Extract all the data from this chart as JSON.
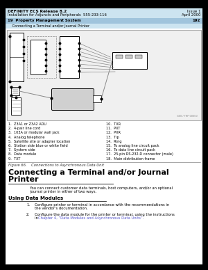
{
  "header_left1": "DEFINITY ECS Release 8.2",
  "header_left2": "Installation for Adjuncts and Peripherals  555-233-116",
  "header_right1": "Issue 1",
  "header_right2": "April 2000",
  "header_section_left": "19  Property Management System",
  "header_section_right": "192",
  "header_sub": "    Connecting a Terminal and/or Journal Printer",
  "header_bg": "#cce4f0",
  "header_section_bg": "#a0c4dc",
  "page_bg": "#ffffff",
  "outer_bg": "#000000",
  "diagram_bg": "#f5f5f5",
  "diagram_border": "#cccccc",
  "legend_items_left": [
    "1.  Z3A1 or Z3A2 ADU",
    "2.  4-pair line cord",
    "3.  103A or modular wall jack",
    "4.  Analog telephone",
    "5.  Satellite site or adapter location",
    "6.  Station side blue or white field",
    "7.  System side",
    "8.  Data module",
    "9.  TXT"
  ],
  "legend_items_right": [
    "10.  TXR",
    "11.  PXT",
    "12.  PXR",
    "13.  Tip",
    "14.  Ring",
    "15.  To analog line circuit pack",
    "16.  To data line circuit pack",
    "17.  25-pin RS-232-D connector (male)",
    "18.  Main distribution frame"
  ],
  "figure_caption": "Figure 66.    Connections to Asynchronous Data Unit",
  "section_title_line1": "Connecting a Terminal and/or Journal",
  "section_title_line2": "Printer",
  "body_text_line1": "You can connect customer data terminals, host computers, and/or an optional",
  "body_text_line2": "journal printer in either of two ways.",
  "subsection_title": "Using Data Modules",
  "list1_line1": "Configure printer or terminal in accordance with the recommendations in",
  "list1_line2": "the vendor’s documentation.",
  "list2_line1": "Configure the data module for the printer or terminal, using the instructions",
  "list2_line2_pre": "in ",
  "list2_line2_link": "Chapter 4, “Data Modules and Asynchronous Data Units”",
  "list2_line2_post": ".",
  "link_color": "#5555cc",
  "text_color": "#000000",
  "caption_color": "#333333",
  "title_color": "#000000"
}
